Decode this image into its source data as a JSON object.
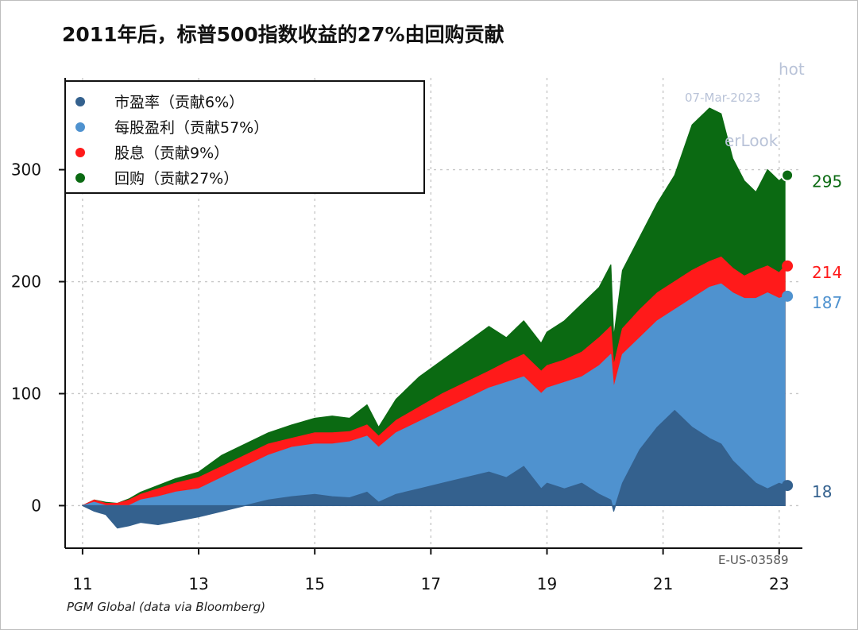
{
  "title": "2011年后，标普500指数收益的27%由回购贡献",
  "source": "PGM Global (data via Bloomberg)",
  "watermark": {
    "brand": "hot",
    "date": "07-Mar-2023",
    "site": "erLook",
    "chart_id": "E-US-03589"
  },
  "colors": {
    "pe": "#34618e",
    "eps": "#4f92cf",
    "dividend": "#ff1a1a",
    "buyback": "#0b6a12",
    "grid": "#c8c8c8",
    "axis": "#111111"
  },
  "chart_data": {
    "type": "area",
    "stacked": true,
    "xlim": [
      10.7,
      23.4
    ],
    "ylim": [
      -38,
      382
    ],
    "x_ticks": [
      11,
      13,
      15,
      17,
      19,
      21,
      23
    ],
    "x_tick_labels": [
      "11",
      "13",
      "15",
      "17",
      "19",
      "21",
      "23"
    ],
    "y_ticks": [
      0,
      100,
      200,
      300
    ],
    "y_tick_labels": [
      "0",
      "100",
      "200",
      "300"
    ],
    "grid": true,
    "legend_position": "top-left",
    "x": [
      11.0,
      11.2,
      11.4,
      11.6,
      11.8,
      12.0,
      12.3,
      12.6,
      13.0,
      13.4,
      13.8,
      14.2,
      14.6,
      15.0,
      15.3,
      15.6,
      15.9,
      16.1,
      16.4,
      16.8,
      17.2,
      17.6,
      18.0,
      18.3,
      18.6,
      18.9,
      19.0,
      19.3,
      19.6,
      19.9,
      20.1,
      20.15,
      20.3,
      20.6,
      20.9,
      21.2,
      21.5,
      21.8,
      22.0,
      22.2,
      22.4,
      22.6,
      22.8,
      23.0,
      23.1
    ],
    "series": [
      {
        "name": "市盈率（贡献6%）",
        "end_label": "18",
        "values": [
          0,
          -5,
          -8,
          -20,
          -18,
          -15,
          -17,
          -14,
          -10,
          -5,
          0,
          5,
          8,
          10,
          8,
          7,
          12,
          3,
          10,
          15,
          20,
          25,
          30,
          25,
          35,
          15,
          20,
          15,
          20,
          10,
          5,
          -5,
          20,
          50,
          70,
          85,
          70,
          60,
          55,
          40,
          30,
          20,
          15,
          20,
          18
        ]
      },
      {
        "name": "每股盈利（贡献57%）",
        "end_label": "187",
        "values": [
          0,
          3,
          0,
          -2,
          0,
          5,
          8,
          12,
          15,
          25,
          35,
          45,
          52,
          55,
          55,
          57,
          62,
          52,
          65,
          75,
          85,
          95,
          105,
          110,
          115,
          100,
          105,
          110,
          115,
          125,
          135,
          105,
          135,
          150,
          165,
          175,
          185,
          195,
          198,
          190,
          185,
          185,
          190,
          185,
          187
        ]
      },
      {
        "name": "股息（贡献9%）",
        "end_label": "214",
        "values": [
          0,
          5,
          2,
          2,
          5,
          10,
          15,
          20,
          25,
          35,
          45,
          55,
          60,
          65,
          65,
          66,
          72,
          62,
          76,
          88,
          100,
          110,
          120,
          128,
          135,
          120,
          125,
          130,
          137,
          150,
          160,
          125,
          158,
          175,
          190,
          200,
          210,
          218,
          222,
          212,
          205,
          210,
          214,
          208,
          214
        ]
      },
      {
        "name": "回购（贡献27%）",
        "end_label": "295",
        "values": [
          0,
          5,
          3,
          2,
          6,
          12,
          18,
          24,
          30,
          45,
          55,
          65,
          72,
          78,
          80,
          78,
          90,
          70,
          95,
          115,
          130,
          145,
          160,
          150,
          165,
          145,
          155,
          165,
          180,
          195,
          215,
          150,
          210,
          240,
          270,
          295,
          340,
          355,
          350,
          310,
          290,
          280,
          300,
          290,
          295
        ]
      }
    ]
  }
}
